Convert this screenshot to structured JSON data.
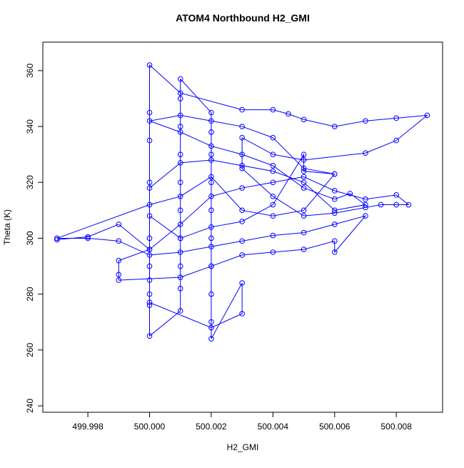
{
  "chart_data": {
    "type": "line",
    "title": "ATOM4 Northbound H2_GMI",
    "x_label": "H2_GMI",
    "y_label": "Theta (K)",
    "color": "#0000ff",
    "x": [
      499.997,
      499.998,
      499.999,
      500,
      500,
      500,
      500,
      500,
      500,
      500.001,
      500.001,
      500.001,
      500.001,
      500.001,
      500.001,
      500.001,
      500.001,
      500.001,
      500.001,
      500.002,
      500.002,
      500.002,
      500.002,
      500.002,
      500.002,
      500.002,
      500.002,
      500.002,
      500.002,
      500.003,
      500.003,
      500.002,
      500,
      500,
      500,
      500,
      500,
      500,
      500.001,
      500.003,
      500.004,
      500.0045,
      500.005,
      500.006,
      500.007,
      500.008,
      500.009,
      500.008,
      500.007,
      500.005,
      500.004,
      500.003,
      500.003,
      500.004,
      500.005,
      500.006,
      500.007,
      500.0075,
      500.008,
      500.0084,
      500.008,
      500.007,
      500.006,
      500.005,
      500.004,
      500.003,
      500.002,
      500.001,
      500,
      499.999,
      499.999,
      499.999,
      500.001,
      500.002,
      500.003,
      500.004,
      500.005,
      500.006,
      500.006,
      500.007,
      500.006,
      500.005,
      500.004,
      500.003,
      500.002,
      500.001,
      500,
      499.999,
      499.998,
      499.997,
      500,
      500.001,
      500.002,
      500.003,
      500.004,
      500.005,
      500.006,
      500.005,
      500.004,
      500.003,
      500.002,
      500.001,
      500,
      500.001,
      500.002,
      500.003,
      500.004,
      500.005,
      500.006,
      500.0065,
      500.007,
      500.006,
      500.005,
      500.004,
      500.003,
      500.002,
      500.001,
      500,
      500,
      500.001,
      500.002,
      500.003,
      500.004,
      500.005,
      500.005,
      500.006
    ],
    "values": [
      299.5,
      300.5,
      305,
      296,
      290,
      285,
      280,
      276,
      265,
      274,
      282,
      290,
      300,
      310,
      320,
      330,
      340,
      350,
      357,
      345,
      338,
      330,
      320,
      310,
      300,
      290,
      280,
      270,
      264,
      284,
      273,
      268,
      277,
      300,
      320,
      335,
      345,
      362,
      352,
      346,
      346,
      344.5,
      342.5,
      340,
      342,
      343,
      344,
      335,
      330.5,
      328,
      330,
      336,
      325,
      315,
      308,
      309,
      311,
      312,
      312,
      312,
      315.5,
      314,
      317,
      322,
      320,
      318,
      315,
      305,
      296,
      292,
      287,
      285,
      286,
      290,
      294,
      295,
      296,
      299,
      295,
      308,
      305,
      302,
      301,
      299,
      297,
      295,
      294,
      299,
      300,
      300,
      312,
      315,
      322,
      310,
      308,
      310,
      323,
      325,
      336,
      340,
      342,
      344,
      342,
      338,
      333,
      330,
      326,
      318,
      314,
      316,
      312,
      310,
      320,
      324,
      326,
      328,
      327,
      318,
      308,
      300,
      304,
      306,
      312,
      330,
      324,
      323
    ],
    "xlim": [
      499.99654,
      500.0095
    ],
    "ylim": [
      237.7,
      370.2
    ],
    "xticks": [
      {
        "value": 499.998,
        "label": "499.998"
      },
      {
        "value": 500,
        "label": "500.000"
      },
      {
        "value": 500.002,
        "label": "500.002"
      },
      {
        "value": 500.004,
        "label": "500.004"
      },
      {
        "value": 500.006,
        "label": "500.006"
      },
      {
        "value": 500.008,
        "label": "500.008"
      }
    ],
    "yticks": [
      240,
      260,
      280,
      300,
      320,
      340,
      360
    ]
  }
}
